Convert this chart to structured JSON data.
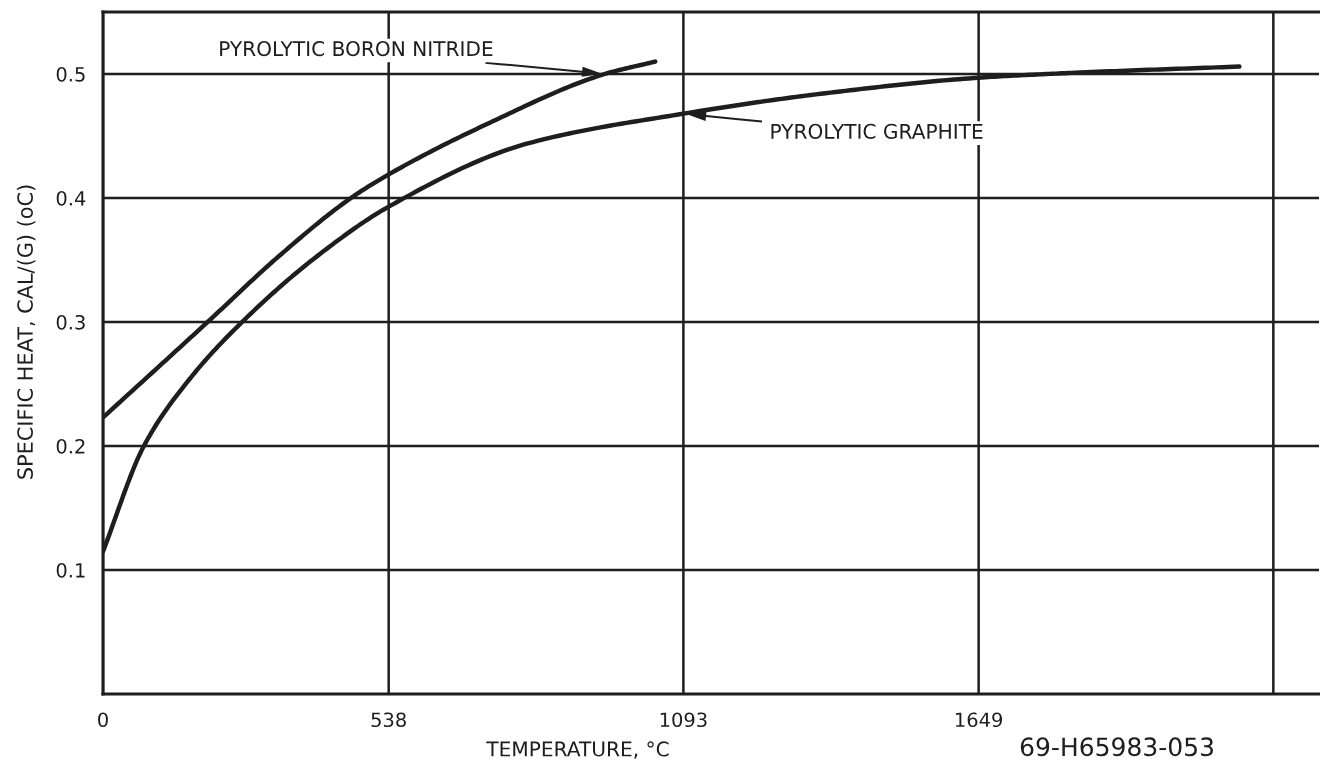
{
  "chart_data": {
    "type": "line",
    "xlabel": "TEMPERATURE, °C",
    "ylabel": "SPECIFIC HEAT, CAL/(G) (oC)",
    "annotations": [
      "69-H65983-053"
    ],
    "xlim": [
      0,
      2290
    ],
    "ylim": [
      0,
      0.55
    ],
    "xticks": [
      0,
      538,
      1093,
      1649,
      {
        "value": 2204,
        "label": null
      }
    ],
    "yticks": [
      0.1,
      0.2,
      0.3,
      0.4,
      0.5
    ],
    "grid": true,
    "legend": false,
    "marker": "none",
    "line_style": "solid",
    "series": [
      {
        "name": "PYROLYTIC BORON NITRIDE",
        "color": "#1e1e1e",
        "x": [
          0,
          197,
          331,
          467,
          538,
          720,
          945,
          1040
        ],
        "values": [
          0.223,
          0.3,
          0.353,
          0.4,
          0.419,
          0.459,
          0.5,
          0.51
        ]
      },
      {
        "name": "PYROLYTIC GRAPHITE",
        "color": "#1e1e1e",
        "x": [
          0,
          77,
          165,
          262,
          400,
          538,
          800,
          1093,
          1370,
          1649,
          1830,
          2140
        ],
        "values": [
          0.115,
          0.2,
          0.255,
          0.3,
          0.352,
          0.393,
          0.444,
          0.468,
          0.485,
          0.497,
          0.501,
          0.506
        ]
      }
    ]
  }
}
